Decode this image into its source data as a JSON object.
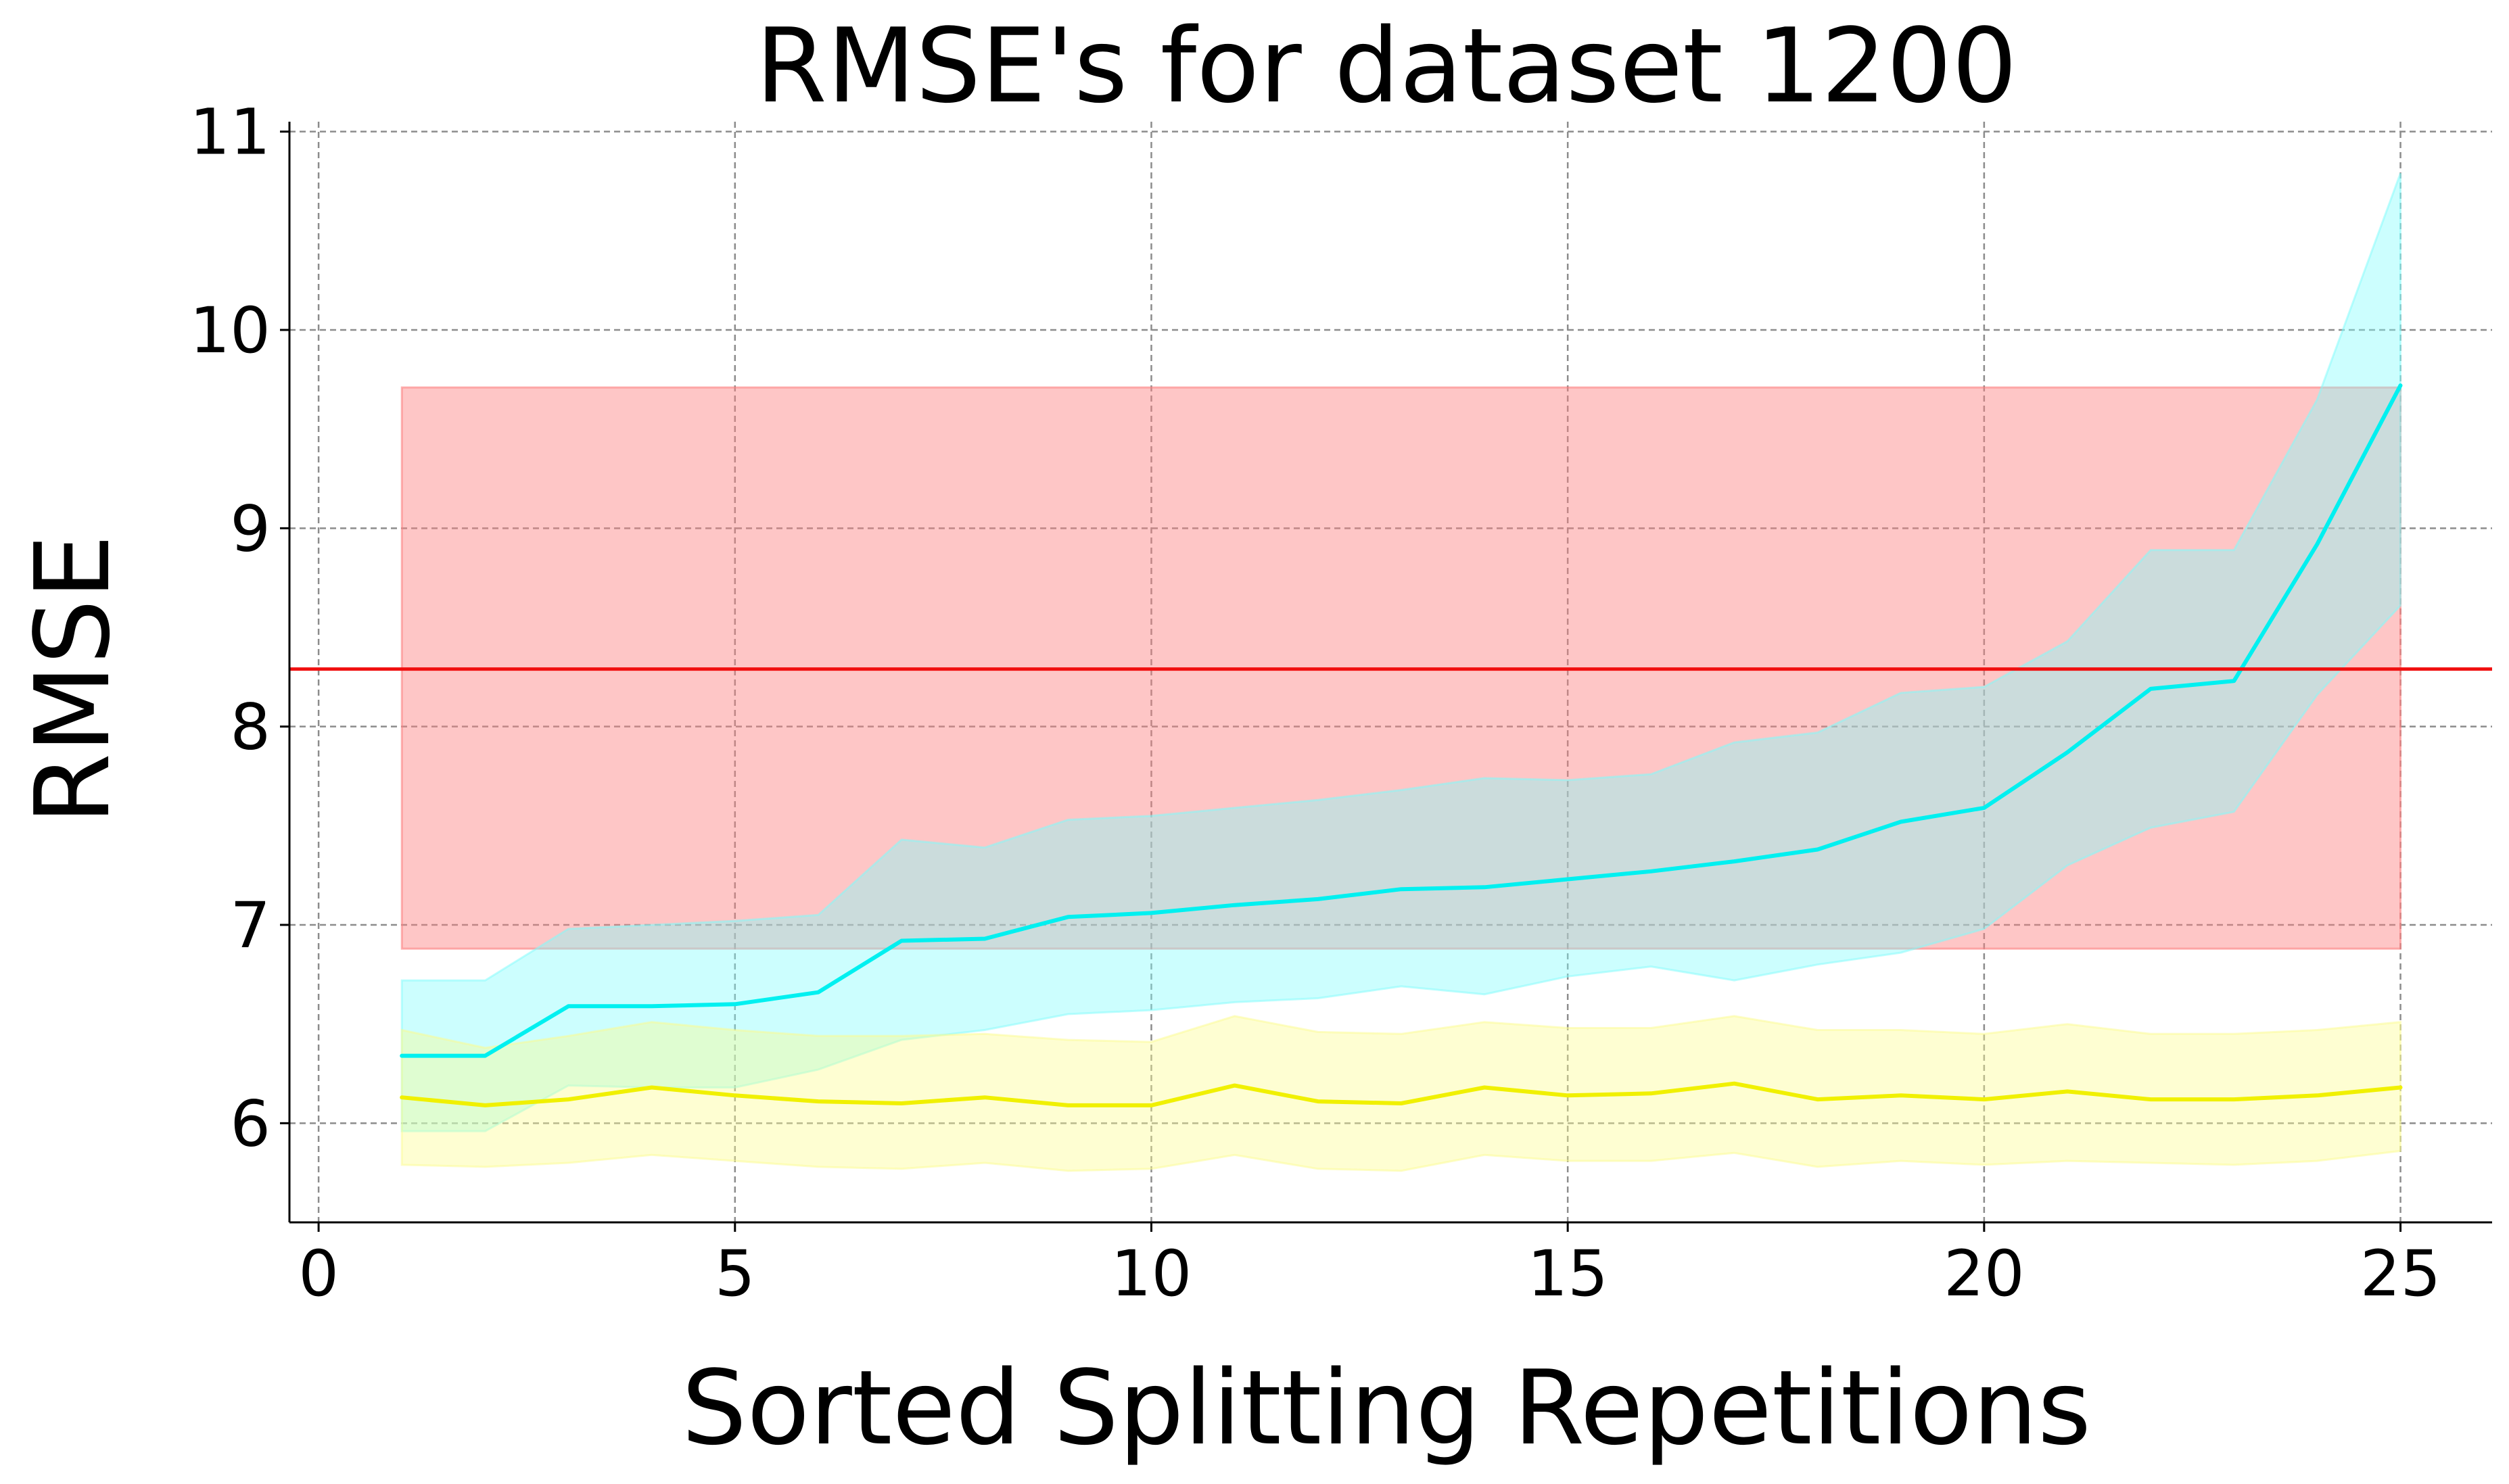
{
  "chart_data": {
    "type": "line",
    "title": "RMSE's for dataset 1200",
    "xlabel": "Sorted Splitting Repetitions",
    "ylabel": "RMSE",
    "xlim": [
      -0.35,
      26.1
    ],
    "ylim": [
      5.5,
      11.05
    ],
    "xticks": [
      0,
      5,
      10,
      15,
      20,
      25
    ],
    "yticks": [
      6,
      7,
      8,
      9,
      10,
      11
    ],
    "grid": true,
    "x": [
      1,
      2,
      3,
      4,
      5,
      6,
      7,
      8,
      9,
      10,
      11,
      12,
      13,
      14,
      15,
      16,
      17,
      18,
      19,
      20,
      21,
      22,
      23,
      24,
      25
    ],
    "series": [
      {
        "color": "#00f0f0",
        "band_color": "#7ffcfc",
        "values": [
          6.34,
          6.34,
          6.59,
          6.59,
          6.6,
          6.66,
          6.92,
          6.93,
          7.04,
          7.06,
          7.1,
          7.13,
          7.18,
          7.19,
          7.23,
          7.27,
          7.32,
          7.38,
          7.52,
          7.59,
          7.87,
          8.19,
          8.23,
          8.92,
          9.72
        ],
        "upper": [
          6.72,
          6.72,
          6.98,
          7.0,
          7.02,
          7.05,
          7.43,
          7.39,
          7.53,
          7.55,
          7.59,
          7.63,
          7.68,
          7.74,
          7.73,
          7.76,
          7.92,
          7.97,
          8.17,
          8.2,
          8.43,
          8.89,
          8.89,
          9.65,
          10.79
        ],
        "lower": [
          5.96,
          5.96,
          6.19,
          6.18,
          6.18,
          6.27,
          6.42,
          6.47,
          6.55,
          6.57,
          6.61,
          6.63,
          6.69,
          6.65,
          6.74,
          6.79,
          6.72,
          6.8,
          6.86,
          6.98,
          7.3,
          7.49,
          7.57,
          8.16,
          8.61
        ]
      },
      {
        "color": "#f0f000",
        "band_color": "#fcfc8f",
        "values": [
          6.13,
          6.09,
          6.12,
          6.18,
          6.14,
          6.11,
          6.1,
          6.13,
          6.09,
          6.09,
          6.19,
          6.11,
          6.1,
          6.18,
          6.14,
          6.15,
          6.2,
          6.12,
          6.14,
          6.12,
          6.16,
          6.12,
          6.12,
          6.14,
          6.18
        ],
        "upper": [
          6.47,
          6.38,
          6.44,
          6.51,
          6.47,
          6.44,
          6.44,
          6.45,
          6.42,
          6.41,
          6.54,
          6.46,
          6.45,
          6.51,
          6.48,
          6.48,
          6.54,
          6.47,
          6.47,
          6.45,
          6.5,
          6.45,
          6.45,
          6.47,
          6.51
        ],
        "lower": [
          5.79,
          5.78,
          5.8,
          5.84,
          5.81,
          5.78,
          5.77,
          5.8,
          5.76,
          5.77,
          5.84,
          5.77,
          5.76,
          5.84,
          5.81,
          5.81,
          5.85,
          5.78,
          5.81,
          5.79,
          5.81,
          5.8,
          5.79,
          5.81,
          5.86
        ]
      }
    ],
    "reference": {
      "color": "#f01010",
      "band_color": "#fc8080",
      "value": 8.29,
      "x_start": 1,
      "x_end": 25,
      "band_lower": 6.88,
      "band_upper": 9.71
    }
  }
}
